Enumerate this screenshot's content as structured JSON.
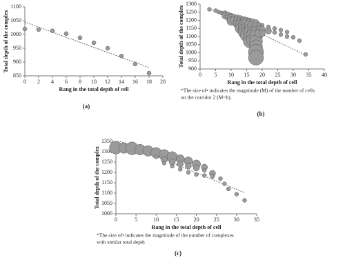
{
  "chart_data": [
    {
      "type": "scatter",
      "caption": "(a)",
      "x_label": "Rang in the total depth of cell",
      "y_label": "Total depth of the complex",
      "xlim": [
        0,
        20
      ],
      "ylim": [
        850,
        1100
      ],
      "xticks": [
        0,
        2,
        4,
        6,
        8,
        10,
        12,
        14,
        16,
        18,
        20
      ],
      "yticks": [
        850,
        900,
        950,
        1000,
        1050,
        1100
      ],
      "series": [
        {
          "color": "#9a9a9a",
          "x": [
            0,
            2,
            4,
            6,
            8,
            10,
            12,
            14,
            16,
            18
          ],
          "values": [
            1020,
            1018,
            1013,
            1003,
            988,
            970,
            950,
            922,
            893,
            860
          ]
        }
      ],
      "trendline": {
        "x": [
          0,
          18
        ],
        "y": [
          1045,
          880
        ]
      }
    },
    {
      "type": "bubble",
      "caption": "(b)",
      "x_label": "Rang in the total depth of cell",
      "y_label": "Total depth of the complex",
      "note": [
        "*The size of• indicates  the magnitude (M) of the number of cells",
        "on the corridor 2 (M=b)."
      ],
      "xlim": [
        0,
        40
      ],
      "ylim": [
        900,
        1300
      ],
      "xticks": [
        0,
        5,
        10,
        15,
        20,
        25,
        30,
        35,
        40
      ],
      "yticks": [
        900,
        950,
        1000,
        1050,
        1100,
        1150,
        1200,
        1250,
        1300
      ],
      "series": [
        {
          "color": "#9a9a9a",
          "x": [
            3,
            5,
            6,
            7,
            8,
            8,
            9,
            9,
            10,
            10,
            10,
            11,
            11,
            12,
            12,
            12,
            13,
            13,
            13,
            13,
            14,
            14,
            14,
            14,
            14,
            15,
            15,
            15,
            15,
            15,
            16,
            16,
            16,
            16,
            16,
            16,
            17,
            17,
            17,
            17,
            17,
            18,
            18,
            18,
            18,
            18,
            18,
            18,
            18,
            19,
            19,
            19,
            20,
            20,
            20,
            22,
            22,
            24,
            24,
            26,
            26,
            28,
            28,
            30,
            32,
            34
          ],
          "values": [
            1268,
            1260,
            1252,
            1245,
            1240,
            1228,
            1232,
            1218,
            1225,
            1210,
            1195,
            1218,
            1200,
            1215,
            1195,
            1178,
            1210,
            1190,
            1170,
            1150,
            1205,
            1185,
            1165,
            1145,
            1125,
            1200,
            1178,
            1155,
            1132,
            1108,
            1195,
            1170,
            1145,
            1120,
            1095,
            1070,
            1190,
            1163,
            1135,
            1108,
            1080,
            1185,
            1160,
            1130,
            1100,
            1070,
            1040,
            1005,
            970,
            1175,
            1148,
            1120,
            1170,
            1145,
            1120,
            1160,
            1135,
            1150,
            1125,
            1140,
            1112,
            1128,
            1100,
            1095,
            1075,
            990
          ],
          "sizes": [
            1,
            1,
            1,
            1,
            2,
            2,
            2,
            2,
            2,
            3,
            3,
            2,
            3,
            2,
            3,
            3,
            2,
            3,
            4,
            4,
            2,
            3,
            4,
            4,
            4,
            2,
            4,
            4,
            4,
            5,
            2,
            4,
            4,
            5,
            5,
            5,
            2,
            4,
            4,
            5,
            5,
            2,
            3,
            4,
            5,
            5,
            5,
            6,
            6,
            1,
            2,
            3,
            1,
            2,
            2,
            1,
            2,
            1,
            1,
            1,
            1,
            1,
            1,
            1,
            1,
            1
          ]
        }
      ],
      "trendline": {
        "x": [
          3,
          34
        ],
        "y": [
          1270,
          985
        ]
      }
    },
    {
      "type": "bubble",
      "caption": "(c)",
      "x_label": "Rang in the total depth of cell",
      "y_label": "Total depth of the complex",
      "note": [
        "*The size of• indicates  the magnitude of the number of complexes",
        "with similar total depth"
      ],
      "xlim": [
        0,
        35
      ],
      "ylim": [
        1000,
        1350
      ],
      "xticks": [
        0,
        5,
        10,
        15,
        20,
        25,
        30,
        35
      ],
      "yticks": [
        1000,
        1050,
        1100,
        1150,
        1200,
        1250,
        1300,
        1350
      ],
      "series": [
        {
          "color": "#9a9a9a",
          "x": [
            0,
            2,
            4,
            6,
            8,
            10,
            12,
            14,
            16,
            18,
            20,
            22,
            24,
            26,
            27,
            28,
            30,
            32,
            10,
            12,
            12,
            14,
            14,
            16,
            16,
            18,
            18,
            20,
            20,
            22,
            22,
            24
          ],
          "values": [
            1320,
            1318,
            1316,
            1310,
            1304,
            1295,
            1285,
            1275,
            1265,
            1255,
            1240,
            1225,
            1195,
            1170,
            1145,
            1120,
            1095,
            1065,
            1275,
            1262,
            1245,
            1250,
            1230,
            1240,
            1215,
            1232,
            1200,
            1222,
            1190,
            1210,
            1185,
            1180
          ],
          "sizes": [
            5,
            4,
            5,
            4,
            4,
            4,
            4,
            4,
            3,
            3,
            3,
            2,
            2,
            1,
            1,
            1,
            1,
            1,
            1,
            2,
            1,
            2,
            1,
            2,
            1,
            2,
            1,
            2,
            1,
            1,
            1,
            1
          ]
        }
      ],
      "trendline": {
        "x": [
          1,
          32
        ],
        "y": [
          1350,
          1102
        ]
      }
    }
  ]
}
